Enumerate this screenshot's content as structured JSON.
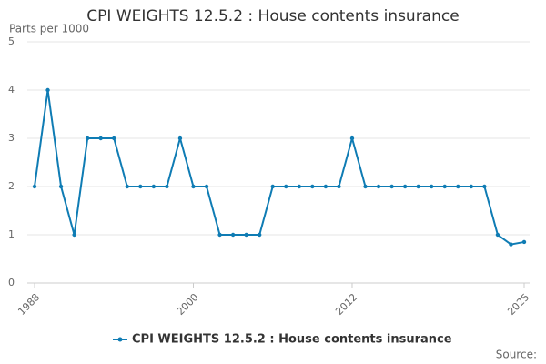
{
  "chart_data": {
    "type": "line",
    "title": "CPI WEIGHTS 12.5.2 : House contents insurance",
    "y_label": "Parts per 1000",
    "source": "Source:",
    "x": [
      1988,
      1989,
      1990,
      1991,
      1992,
      1993,
      1994,
      1995,
      1996,
      1997,
      1998,
      1999,
      2000,
      2001,
      2002,
      2003,
      2004,
      2005,
      2006,
      2007,
      2008,
      2009,
      2010,
      2011,
      2012,
      2013,
      2014,
      2015,
      2016,
      2017,
      2018,
      2019,
      2020,
      2021,
      2022,
      2023,
      2024,
      2025
    ],
    "series": [
      {
        "name": "CPI WEIGHTS 12.5.2 : House contents insurance",
        "color": "#0f7cb4",
        "values": [
          2,
          4,
          2,
          1,
          3,
          3,
          3,
          2,
          2,
          2,
          2,
          3,
          2,
          2,
          1,
          1,
          1,
          1,
          2,
          2,
          2,
          2,
          2,
          2,
          3,
          2,
          2,
          2,
          2,
          2,
          2,
          2,
          2,
          2,
          2,
          1,
          0.8,
          0.85
        ]
      }
    ],
    "xlim": [
      1988,
      2025
    ],
    "xticks": [
      1988,
      2000,
      2012,
      2025
    ],
    "ylim": [
      0,
      5
    ],
    "yticks": [
      0,
      1,
      2,
      3,
      4,
      5
    ],
    "grid": true
  }
}
